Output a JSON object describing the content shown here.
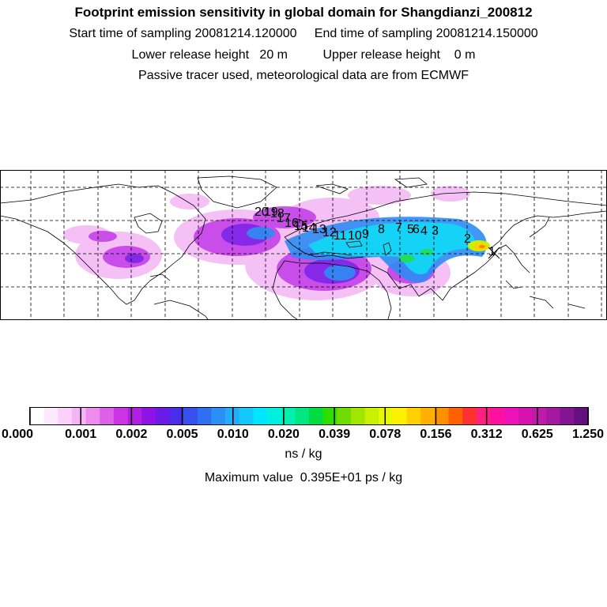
{
  "header": {
    "title": "Footprint emission sensitivity in global domain for Shangdianzi_200812",
    "sampling_line": "Start time of sampling 20081214.120000     End time of sampling 20081214.150000",
    "release_line": "Lower release height   20 m          Upper release height    0 m",
    "info_line": "Passive tracer used, meteorological data are from ECMWF"
  },
  "map": {
    "domain": "global",
    "gridlines": true,
    "background": "#ffffff",
    "trajectory_labels": [
      "1",
      "2",
      "3",
      "4",
      "5",
      "6",
      "7",
      "8",
      "9",
      "10",
      "11",
      "12",
      "13",
      "14",
      "15",
      "16",
      "17",
      "18",
      "19",
      "20"
    ]
  },
  "colorbar": {
    "tick_labels": [
      "0.000",
      "0.001",
      "0.002",
      "0.005",
      "0.010",
      "0.020",
      "0.039",
      "0.078",
      "0.156",
      "0.312",
      "0.625",
      "1.250"
    ],
    "colors": [
      "#ffffff",
      "#fde8fd",
      "#fbd0fb",
      "#f5b4f5",
      "#ec8cef",
      "#dd60e9",
      "#cc33e6",
      "#b31ee3",
      "#8f12e6",
      "#6b1ae8",
      "#4a2eea",
      "#3550ee",
      "#2f6ff3",
      "#2a8ff7",
      "#22adfb",
      "#14c8fd",
      "#00e6ff",
      "#00f0e0",
      "#00f0b0",
      "#00e680",
      "#00dd40",
      "#30dd00",
      "#70dd00",
      "#a0e600",
      "#c8f000",
      "#e8f800",
      "#fff000",
      "#ffd000",
      "#ffb000",
      "#ff9000",
      "#ff6000",
      "#ff3030",
      "#ff2080",
      "#ff10a0",
      "#ee10b8",
      "#d812b0",
      "#c01aa8",
      "#a3189e",
      "#841592",
      "#651080"
    ],
    "unit": "ns / kg"
  },
  "footer": {
    "max_value": "Maximum value  0.395E+01 ps / kg"
  }
}
